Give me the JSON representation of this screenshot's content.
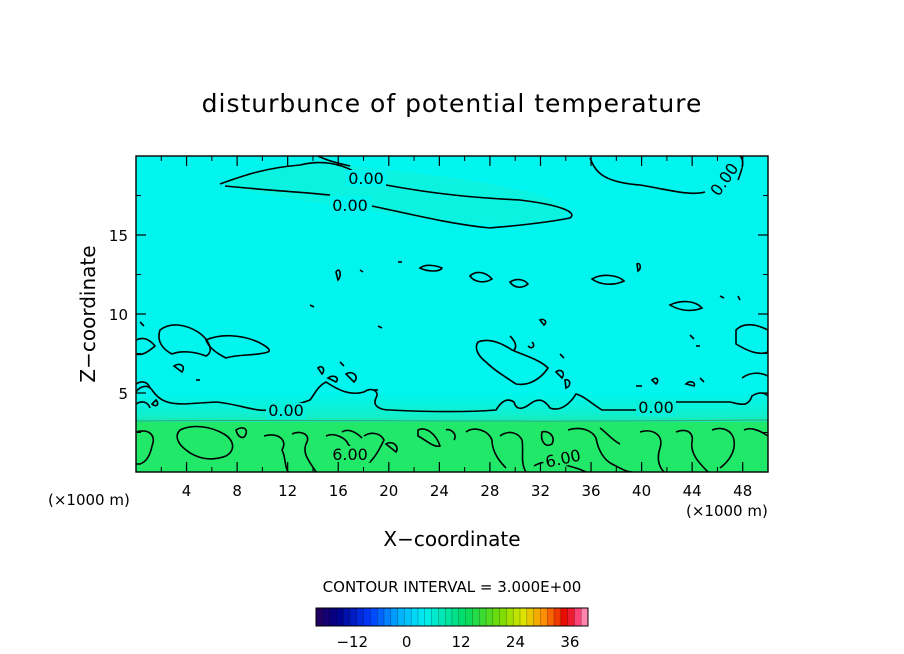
{
  "chart_data": {
    "type": "contour",
    "title": "disturbunce of potential temperature",
    "xlabel": "X−coordinate",
    "ylabel": "Z−coordinate",
    "x_unit_left": "(×1000 m)",
    "x_unit_right": "(×1000 m)",
    "xlim": [
      0,
      50
    ],
    "ylim": [
      0,
      20
    ],
    "x_ticks": [
      "4",
      "8",
      "12",
      "16",
      "20",
      "24",
      "28",
      "32",
      "36",
      "40",
      "44",
      "48"
    ],
    "y_ticks": [
      "5",
      "10",
      "15"
    ],
    "contour_interval_text": "CONTOUR INTERVAL = 3.000E+00",
    "contour_interval": 3.0,
    "contour_labels": [
      {
        "text": "0.00",
        "x": 18.0,
        "z": 18.5
      },
      {
        "text": "0.00",
        "x": 17.0,
        "z": 16.7
      },
      {
        "text": "0.00",
        "x": 47.0,
        "z": 18.2
      },
      {
        "text": "0.00",
        "x": 11.8,
        "z": 3.9
      },
      {
        "text": "0.00",
        "x": 41.2,
        "z": 4.0
      },
      {
        "text": "6.00",
        "x": 16.5,
        "z": 1.0
      },
      {
        "text": "6.00",
        "x": 33.0,
        "z": 0.5
      }
    ],
    "colorbar": {
      "range": [
        -20,
        40
      ],
      "tick_labels": [
        "−12",
        "0",
        "12",
        "24",
        "36"
      ],
      "tick_values": [
        -12,
        0,
        12,
        24,
        36
      ]
    },
    "fields": [
      {
        "name": "upper",
        "z_range": [
          3.2,
          20
        ],
        "value": 0,
        "color": "#00f5ee"
      },
      {
        "name": "lower",
        "z_range": [
          0,
          3.2
        ],
        "value": 6,
        "color": "#22e86a"
      }
    ],
    "grid": false
  }
}
